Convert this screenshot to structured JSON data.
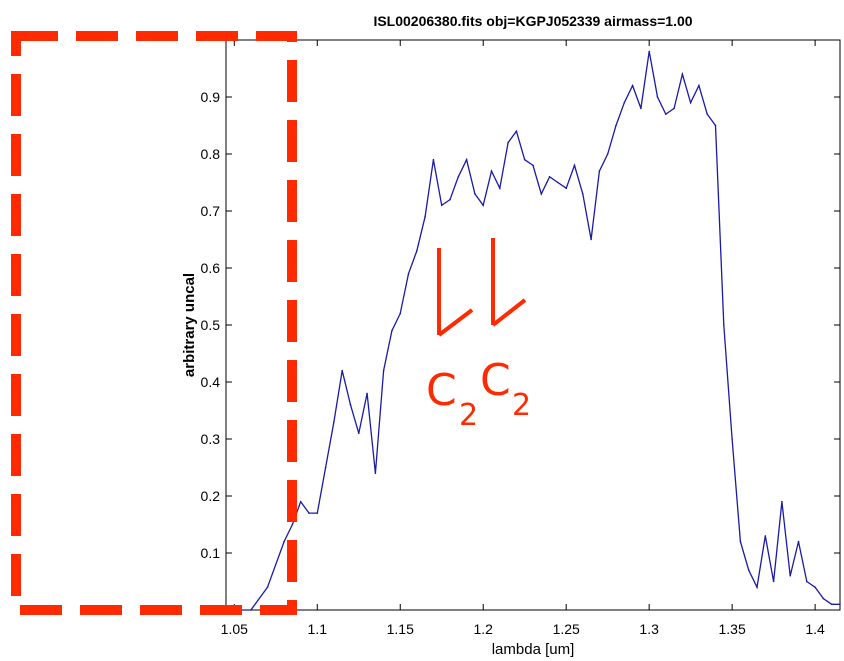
{
  "chart_data": {
    "type": "line",
    "title": "ISL00206380.fits obj=KGPJ052339  airmass=1.00",
    "xlabel": "lambda [um]",
    "ylabel": "arbitrary uncal",
    "xlim": [
      1.045,
      1.415
    ],
    "ylim": [
      0,
      1.0
    ],
    "xticks": [
      1.05,
      1.1,
      1.15,
      1.2,
      1.25,
      1.3,
      1.35,
      1.4
    ],
    "xtick_labels": [
      "1.05",
      "1.1",
      "1.15",
      "1.2",
      "1.25",
      "1.3",
      "1.35",
      "1.4"
    ],
    "yticks": [
      0.1,
      0.2,
      0.3,
      0.4,
      0.5,
      0.6,
      0.7,
      0.8,
      0.9
    ],
    "ytick_labels": [
      "0.1",
      "0.2",
      "0.3",
      "0.4",
      "0.5",
      "0.6",
      "0.7",
      "0.8",
      "0.9"
    ],
    "grid": false,
    "series": [
      {
        "color": "#1a1aa6",
        "x": [
          1.045,
          1.06,
          1.07,
          1.08,
          1.085,
          1.09,
          1.095,
          1.1,
          1.105,
          1.11,
          1.115,
          1.12,
          1.125,
          1.13,
          1.135,
          1.14,
          1.145,
          1.15,
          1.155,
          1.16,
          1.165,
          1.17,
          1.175,
          1.18,
          1.185,
          1.19,
          1.195,
          1.2,
          1.205,
          1.21,
          1.215,
          1.22,
          1.225,
          1.23,
          1.235,
          1.24,
          1.245,
          1.25,
          1.255,
          1.26,
          1.265,
          1.27,
          1.275,
          1.28,
          1.285,
          1.29,
          1.295,
          1.3,
          1.305,
          1.31,
          1.315,
          1.32,
          1.325,
          1.33,
          1.335,
          1.34,
          1.345,
          1.35,
          1.355,
          1.36,
          1.365,
          1.37,
          1.375,
          1.38,
          1.385,
          1.39,
          1.395,
          1.4,
          1.405,
          1.41,
          1.415
        ],
        "y": [
          0.0,
          0.0,
          0.04,
          0.12,
          0.15,
          0.19,
          0.17,
          0.17,
          0.25,
          0.33,
          0.42,
          0.36,
          0.31,
          0.38,
          0.24,
          0.42,
          0.49,
          0.52,
          0.59,
          0.63,
          0.69,
          0.79,
          0.71,
          0.72,
          0.76,
          0.79,
          0.73,
          0.71,
          0.77,
          0.74,
          0.82,
          0.84,
          0.79,
          0.78,
          0.73,
          0.76,
          0.75,
          0.74,
          0.78,
          0.73,
          0.65,
          0.77,
          0.8,
          0.85,
          0.89,
          0.92,
          0.88,
          0.98,
          0.9,
          0.87,
          0.88,
          0.94,
          0.89,
          0.92,
          0.87,
          0.85,
          0.5,
          0.3,
          0.12,
          0.07,
          0.04,
          0.13,
          0.05,
          0.19,
          0.06,
          0.12,
          0.05,
          0.04,
          0.02,
          0.01,
          0.01
        ]
      }
    ]
  },
  "annotations": {
    "label_1": "C",
    "sub_1": "2",
    "label_2": "C",
    "sub_2": "2"
  },
  "colors": {
    "annotation": "#ff2a00",
    "line": "#1a1aa6"
  }
}
